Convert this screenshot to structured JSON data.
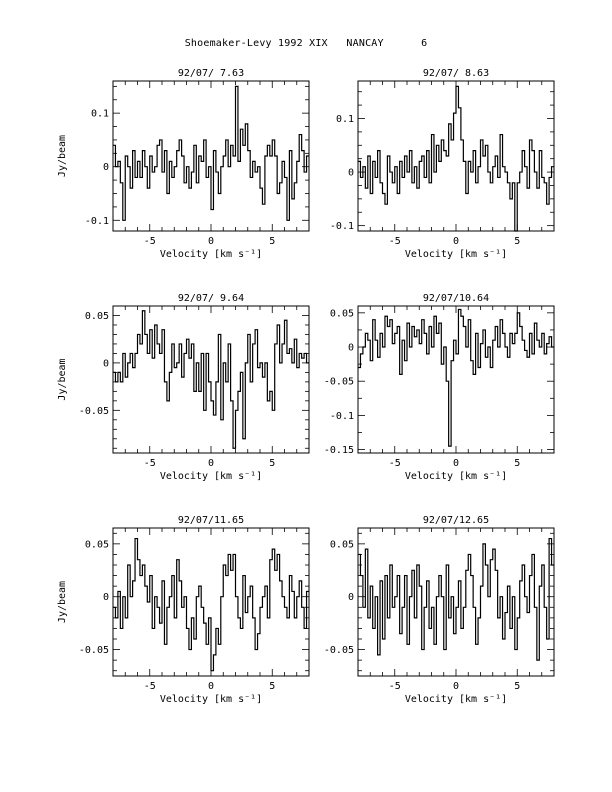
{
  "page": {
    "title": "Shoemaker-Levy 1992 XIX   NANCAY      6"
  },
  "chart_data": [
    {
      "type": "line",
      "title": "92/07/ 7.63",
      "xlabel": "Velocity [km s⁻¹]",
      "ylabel": "Jy/beam",
      "xlim": [
        -8,
        8
      ],
      "ylim": [
        -0.12,
        0.16
      ],
      "xticks": [
        -5,
        0,
        5
      ],
      "xtick_labels": [
        "-5",
        "0",
        "5"
      ],
      "yticks": [
        -0.1,
        0,
        0.1
      ],
      "ytick_labels": [
        "-0.1",
        "0",
        "0.1"
      ],
      "x": [
        -8.0,
        -7.8,
        -7.6,
        -7.4,
        -7.2,
        -7.0,
        -6.8,
        -6.6,
        -6.4,
        -6.2,
        -6.0,
        -5.8,
        -5.6,
        -5.4,
        -5.2,
        -5.0,
        -4.8,
        -4.6,
        -4.4,
        -4.2,
        -4.0,
        -3.8,
        -3.6,
        -3.4,
        -3.2,
        -3.0,
        -2.8,
        -2.6,
        -2.4,
        -2.2,
        -2.0,
        -1.8,
        -1.6,
        -1.4,
        -1.2,
        -1.0,
        -0.8,
        -0.6,
        -0.4,
        -0.2,
        0.0,
        0.2,
        0.4,
        0.6,
        0.8,
        1.0,
        1.2,
        1.4,
        1.6,
        1.8,
        2.0,
        2.2,
        2.4,
        2.6,
        2.8,
        3.0,
        3.2,
        3.4,
        3.6,
        3.8,
        4.0,
        4.2,
        4.4,
        4.6,
        4.8,
        5.0,
        5.2,
        5.4,
        5.6,
        5.8,
        6.0,
        6.2,
        6.4,
        6.6,
        6.8,
        7.0,
        7.2,
        7.4,
        7.6,
        7.8
      ],
      "y": [
        0.04,
        0.0,
        0.01,
        -0.03,
        -0.1,
        0.02,
        0.0,
        -0.04,
        0.03,
        -0.02,
        0.01,
        -0.02,
        0.03,
        0.0,
        -0.04,
        0.02,
        -0.01,
        0.0,
        0.04,
        0.05,
        -0.01,
        0.03,
        -0.05,
        0.01,
        -0.02,
        0.0,
        0.03,
        0.05,
        0.02,
        -0.03,
        0.0,
        -0.04,
        -0.01,
        0.04,
        -0.03,
        0.02,
        0.01,
        0.05,
        -0.02,
        0.0,
        -0.08,
        0.03,
        -0.01,
        -0.05,
        0.0,
        0.02,
        0.05,
        0.0,
        0.04,
        0.02,
        0.15,
        0.01,
        0.07,
        0.04,
        0.08,
        0.03,
        -0.02,
        0.01,
        -0.01,
        0.0,
        -0.04,
        -0.07,
        0.02,
        0.04,
        0.02,
        0.05,
        0.02,
        -0.05,
        -0.03,
        0.01,
        -0.02,
        -0.1,
        0.03,
        -0.06,
        -0.03,
        0.01,
        0.06,
        0.03,
        -0.01,
        0.02
      ]
    },
    {
      "type": "line",
      "title": "92/07/ 8.63",
      "xlabel": "Velocity [km s⁻¹]",
      "ylabel": "",
      "xlim": [
        -8,
        8
      ],
      "ylim": [
        -0.11,
        0.17
      ],
      "xticks": [
        -5,
        0,
        5
      ],
      "xtick_labels": [
        "-5",
        "0",
        "5"
      ],
      "yticks": [
        -0.1,
        0,
        0.1
      ],
      "ytick_labels": [
        "-0.1",
        "0",
        "0.1"
      ],
      "x": [
        -8.0,
        -7.8,
        -7.6,
        -7.4,
        -7.2,
        -7.0,
        -6.8,
        -6.6,
        -6.4,
        -6.2,
        -6.0,
        -5.8,
        -5.6,
        -5.4,
        -5.2,
        -5.0,
        -4.8,
        -4.6,
        -4.4,
        -4.2,
        -4.0,
        -3.8,
        -3.6,
        -3.4,
        -3.2,
        -3.0,
        -2.8,
        -2.6,
        -2.4,
        -2.2,
        -2.0,
        -1.8,
        -1.6,
        -1.4,
        -1.2,
        -1.0,
        -0.8,
        -0.6,
        -0.4,
        -0.2,
        0.0,
        0.2,
        0.4,
        0.6,
        0.8,
        1.0,
        1.2,
        1.4,
        1.6,
        1.8,
        2.0,
        2.2,
        2.4,
        2.6,
        2.8,
        3.0,
        3.2,
        3.4,
        3.6,
        3.8,
        4.0,
        4.2,
        4.4,
        4.6,
        4.8,
        5.0,
        5.2,
        5.4,
        5.6,
        5.8,
        6.0,
        6.2,
        6.4,
        6.6,
        6.8,
        7.0,
        7.2,
        7.4,
        7.6,
        7.8
      ],
      "y": [
        0.02,
        -0.01,
        0.01,
        -0.03,
        0.03,
        -0.04,
        0.02,
        -0.01,
        0.04,
        -0.02,
        -0.04,
        -0.06,
        0.03,
        0.0,
        -0.02,
        0.01,
        -0.04,
        0.02,
        -0.01,
        0.03,
        0.0,
        0.04,
        -0.02,
        0.01,
        -0.03,
        0.02,
        0.03,
        -0.01,
        0.04,
        -0.02,
        0.07,
        0.0,
        0.05,
        0.02,
        0.06,
        0.04,
        0.03,
        0.09,
        0.06,
        0.11,
        0.16,
        0.12,
        0.06,
        0.02,
        -0.04,
        0.02,
        0.0,
        0.04,
        -0.02,
        0.01,
        0.06,
        0.03,
        0.05,
        0.0,
        -0.02,
        0.01,
        0.03,
        -0.01,
        0.07,
        0.01,
        0.0,
        -0.02,
        -0.05,
        -0.02,
        -0.11,
        -0.02,
        0.0,
        0.04,
        0.01,
        -0.03,
        0.06,
        0.04,
        0.0,
        -0.03,
        0.04,
        -0.01,
        -0.02,
        -0.06,
        -0.01,
        0.01
      ]
    },
    {
      "type": "line",
      "title": "92/07/ 9.64",
      "xlabel": "Velocity [km s⁻¹]",
      "ylabel": "Jy/beam",
      "xlim": [
        -8,
        8
      ],
      "ylim": [
        -0.095,
        0.06
      ],
      "xticks": [
        -5,
        0,
        5
      ],
      "xtick_labels": [
        "-5",
        "0",
        "5"
      ],
      "yticks": [
        -0.05,
        0,
        0.05
      ],
      "ytick_labels": [
        "-0.05",
        "0",
        "0.05"
      ],
      "x": [
        -8.0,
        -7.8,
        -7.6,
        -7.4,
        -7.2,
        -7.0,
        -6.8,
        -6.6,
        -6.4,
        -6.2,
        -6.0,
        -5.8,
        -5.6,
        -5.4,
        -5.2,
        -5.0,
        -4.8,
        -4.6,
        -4.4,
        -4.2,
        -4.0,
        -3.8,
        -3.6,
        -3.4,
        -3.2,
        -3.0,
        -2.8,
        -2.6,
        -2.4,
        -2.2,
        -2.0,
        -1.8,
        -1.6,
        -1.4,
        -1.2,
        -1.0,
        -0.8,
        -0.6,
        -0.4,
        -0.2,
        0.0,
        0.2,
        0.4,
        0.6,
        0.8,
        1.0,
        1.2,
        1.4,
        1.6,
        1.8,
        2.0,
        2.2,
        2.4,
        2.6,
        2.8,
        3.0,
        3.2,
        3.4,
        3.6,
        3.8,
        4.0,
        4.2,
        4.4,
        4.6,
        4.8,
        5.0,
        5.2,
        5.4,
        5.6,
        5.8,
        6.0,
        6.2,
        6.4,
        6.6,
        6.8,
        7.0,
        7.2,
        7.4,
        7.6,
        7.8
      ],
      "y": [
        -0.01,
        -0.02,
        -0.01,
        -0.02,
        0.01,
        -0.015,
        0.0,
        0.01,
        -0.005,
        0.01,
        0.03,
        0.02,
        0.055,
        0.03,
        0.01,
        0.035,
        0.005,
        0.04,
        0.02,
        0.01,
        0.035,
        -0.02,
        -0.04,
        -0.01,
        0.02,
        -0.005,
        0.0,
        0.02,
        -0.015,
        0.01,
        0.025,
        0.005,
        0.02,
        -0.03,
        0.0,
        -0.03,
        0.01,
        -0.05,
        0.01,
        -0.02,
        -0.04,
        -0.055,
        -0.02,
        0.03,
        -0.06,
        0.0,
        -0.02,
        0.02,
        -0.04,
        -0.09,
        -0.05,
        -0.03,
        -0.01,
        -0.08,
        0.0,
        0.03,
        -0.02,
        0.02,
        0.035,
        -0.005,
        0.0,
        -0.015,
        0.0,
        -0.04,
        -0.03,
        -0.05,
        0.02,
        0.04,
        0.0,
        0.02,
        0.045,
        0.01,
        0.015,
        0.0,
        0.025,
        -0.005,
        0.01,
        0.005,
        0.01,
        0.0
      ]
    },
    {
      "type": "line",
      "title": "92/07/10.64",
      "xlabel": "Velocity [km s⁻¹]",
      "ylabel": "",
      "xlim": [
        -8,
        8
      ],
      "ylim": [
        -0.155,
        0.06
      ],
      "xticks": [
        -5,
        0,
        5
      ],
      "xtick_labels": [
        "-5",
        "0",
        "5"
      ],
      "yticks": [
        -0.15,
        -0.1,
        -0.05,
        0,
        0.05
      ],
      "ytick_labels": [
        "-0.15",
        "-0.1",
        "-0.05",
        "0",
        "0.05"
      ],
      "x": [
        -8.0,
        -7.8,
        -7.6,
        -7.4,
        -7.2,
        -7.0,
        -6.8,
        -6.6,
        -6.4,
        -6.2,
        -6.0,
        -5.8,
        -5.6,
        -5.4,
        -5.2,
        -5.0,
        -4.8,
        -4.6,
        -4.4,
        -4.2,
        -4.0,
        -3.8,
        -3.6,
        -3.4,
        -3.2,
        -3.0,
        -2.8,
        -2.6,
        -2.4,
        -2.2,
        -2.0,
        -1.8,
        -1.6,
        -1.4,
        -1.2,
        -1.0,
        -0.8,
        -0.6,
        -0.4,
        -0.2,
        0.0,
        0.2,
        0.4,
        0.6,
        0.8,
        1.0,
        1.2,
        1.4,
        1.6,
        1.8,
        2.0,
        2.2,
        2.4,
        2.6,
        2.8,
        3.0,
        3.2,
        3.4,
        3.6,
        3.8,
        4.0,
        4.2,
        4.4,
        4.6,
        4.8,
        5.0,
        5.2,
        5.4,
        5.6,
        5.8,
        6.0,
        6.2,
        6.4,
        6.6,
        6.8,
        7.0,
        7.2,
        7.4,
        7.6,
        7.8
      ],
      "y": [
        -0.03,
        -0.01,
        0.0,
        0.02,
        0.01,
        -0.02,
        0.04,
        0.01,
        -0.015,
        0.02,
        0.0,
        0.045,
        0.03,
        0.04,
        0.005,
        0.02,
        0.03,
        -0.04,
        0.01,
        -0.02,
        0.035,
        0.0,
        0.03,
        0.015,
        0.025,
        0.005,
        0.04,
        0.02,
        -0.01,
        0.03,
        0.0,
        0.045,
        0.02,
        0.035,
        -0.025,
        0.0,
        -0.05,
        -0.145,
        -0.02,
        0.01,
        -0.01,
        0.055,
        0.045,
        0.03,
        0.0,
        0.04,
        -0.02,
        -0.04,
        0.02,
        -0.03,
        0.005,
        0.025,
        -0.015,
        0.0,
        -0.03,
        0.01,
        0.03,
        0.0,
        0.04,
        0.02,
        0.0,
        -0.015,
        0.02,
        0.005,
        0.02,
        0.05,
        0.03,
        0.01,
        -0.005,
        -0.015,
        0.02,
        -0.01,
        0.035,
        0.01,
        0.0,
        0.02,
        -0.01,
        0.005,
        0.015,
        0.0
      ]
    },
    {
      "type": "line",
      "title": "92/07/11.65",
      "xlabel": "Velocity [km s⁻¹]",
      "ylabel": "Jy/beam",
      "xlim": [
        -8,
        8
      ],
      "ylim": [
        -0.075,
        0.065
      ],
      "xticks": [
        -5,
        0,
        5
      ],
      "xtick_labels": [
        "-5",
        "0",
        "5"
      ],
      "yticks": [
        -0.05,
        0,
        0.05
      ],
      "ytick_labels": [
        "-0.05",
        "0",
        "0.05"
      ],
      "x": [
        -8.0,
        -7.8,
        -7.6,
        -7.4,
        -7.2,
        -7.0,
        -6.8,
        -6.6,
        -6.4,
        -6.2,
        -6.0,
        -5.8,
        -5.6,
        -5.4,
        -5.2,
        -5.0,
        -4.8,
        -4.6,
        -4.4,
        -4.2,
        -4.0,
        -3.8,
        -3.6,
        -3.4,
        -3.2,
        -3.0,
        -2.8,
        -2.6,
        -2.4,
        -2.2,
        -2.0,
        -1.8,
        -1.6,
        -1.4,
        -1.2,
        -1.0,
        -0.8,
        -0.6,
        -0.4,
        -0.2,
        0.0,
        0.2,
        0.4,
        0.6,
        0.8,
        1.0,
        1.2,
        1.4,
        1.6,
        1.8,
        2.0,
        2.2,
        2.4,
        2.6,
        2.8,
        3.0,
        3.2,
        3.4,
        3.6,
        3.8,
        4.0,
        4.2,
        4.4,
        4.6,
        4.8,
        5.0,
        5.2,
        5.4,
        5.6,
        5.8,
        6.0,
        6.2,
        6.4,
        6.6,
        6.8,
        7.0,
        7.2,
        7.4,
        7.6,
        7.8
      ],
      "y": [
        -0.01,
        -0.02,
        0.005,
        -0.03,
        0.0,
        -0.02,
        0.03,
        0.0,
        0.015,
        0.055,
        0.035,
        0.02,
        0.03,
        0.01,
        -0.005,
        0.02,
        -0.03,
        0.0,
        -0.01,
        -0.025,
        0.015,
        -0.045,
        -0.01,
        0.0,
        0.02,
        -0.02,
        0.035,
        0.015,
        -0.01,
        0.0,
        -0.03,
        -0.05,
        -0.02,
        -0.04,
        0.0,
        0.01,
        -0.01,
        -0.025,
        -0.045,
        -0.02,
        -0.07,
        -0.055,
        -0.03,
        -0.045,
        0.0,
        0.03,
        0.02,
        0.04,
        0.025,
        0.04,
        0.0,
        -0.02,
        -0.03,
        0.02,
        -0.015,
        0.0,
        0.01,
        -0.02,
        -0.05,
        -0.035,
        -0.01,
        0.0,
        0.01,
        -0.02,
        0.035,
        0.045,
        0.025,
        0.04,
        0.015,
        0.0,
        -0.01,
        -0.02,
        0.02,
        0.005,
        -0.02,
        0.0,
        0.015,
        -0.01,
        -0.03,
        0.005
      ]
    },
    {
      "type": "line",
      "title": "92/07/12.65",
      "xlabel": "Velocity [km s⁻¹]",
      "ylabel": "",
      "xlim": [
        -8,
        8
      ],
      "ylim": [
        -0.075,
        0.065
      ],
      "xticks": [
        -5,
        0,
        5
      ],
      "xtick_labels": [
        "-5",
        "0",
        "5"
      ],
      "yticks": [
        -0.05,
        0,
        0.05
      ],
      "ytick_labels": [
        "-0.05",
        "0",
        "0.05"
      ],
      "x": [
        -8.0,
        -7.8,
        -7.6,
        -7.4,
        -7.2,
        -7.0,
        -6.8,
        -6.6,
        -6.4,
        -6.2,
        -6.0,
        -5.8,
        -5.6,
        -5.4,
        -5.2,
        -5.0,
        -4.8,
        -4.6,
        -4.4,
        -4.2,
        -4.0,
        -3.8,
        -3.6,
        -3.4,
        -3.2,
        -3.0,
        -2.8,
        -2.6,
        -2.4,
        -2.2,
        -2.0,
        -1.8,
        -1.6,
        -1.4,
        -1.2,
        -1.0,
        -0.8,
        -0.6,
        -0.4,
        -0.2,
        0.0,
        0.2,
        0.4,
        0.6,
        0.8,
        1.0,
        1.2,
        1.4,
        1.6,
        1.8,
        2.0,
        2.2,
        2.4,
        2.6,
        2.8,
        3.0,
        3.2,
        3.4,
        3.6,
        3.8,
        4.0,
        4.2,
        4.4,
        4.6,
        4.8,
        5.0,
        5.2,
        5.4,
        5.6,
        5.8,
        6.0,
        6.2,
        6.4,
        6.6,
        6.8,
        7.0,
        7.2,
        7.4,
        7.6,
        7.8
      ],
      "y": [
        0.04,
        0.02,
        -0.01,
        0.045,
        -0.02,
        0.01,
        -0.03,
        0.0,
        -0.055,
        0.015,
        -0.04,
        0.02,
        -0.02,
        0.03,
        -0.01,
        0.0,
        0.02,
        -0.035,
        -0.01,
        0.02,
        -0.045,
        0.0,
        0.025,
        -0.02,
        0.03,
        0.01,
        -0.05,
        -0.01,
        0.015,
        -0.03,
        -0.01,
        -0.045,
        0.0,
        0.02,
        0.0,
        -0.05,
        0.03,
        -0.02,
        0.0,
        -0.035,
        -0.01,
        0.015,
        -0.03,
        -0.01,
        0.025,
        0.04,
        0.02,
        -0.01,
        -0.045,
        -0.02,
        0.01,
        0.05,
        0.03,
        0.0,
        0.035,
        0.045,
        0.025,
        -0.02,
        0.0,
        -0.04,
        -0.015,
        0.01,
        -0.03,
        0.0,
        -0.05,
        -0.02,
        0.015,
        0.03,
        0.0,
        -0.015,
        0.02,
        0.04,
        -0.01,
        -0.06,
        0.01,
        0.03,
        -0.01,
        -0.04,
        0.055,
        0.03
      ]
    }
  ]
}
